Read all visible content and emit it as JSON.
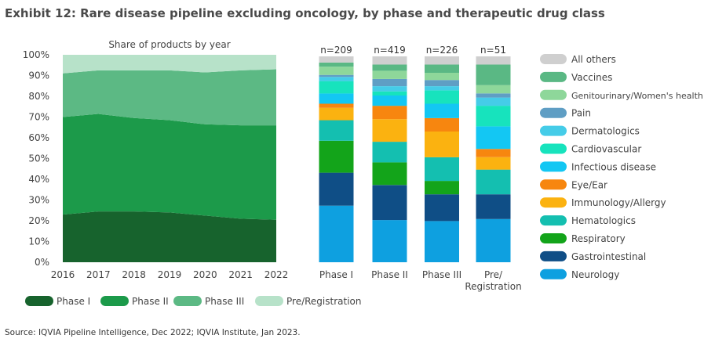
{
  "title": "Exhibit 12: Rare disease pipeline excluding oncology, by phase and therapeutic drug class",
  "source": "Source: IQVIA Pipeline Intelligence, Dec 2022; IQVIA Institute, Jan 2023.",
  "colors": {
    "phase_i": "#17632d",
    "phase_ii": "#1c9a4a",
    "phase_iii": "#5cb984",
    "pre_registration": "#b7e2c9",
    "all_others": "#cfcfcf",
    "vaccines": "#5ab884",
    "genitourinary": "#8ed79a",
    "pain": "#5f9ec4",
    "dermatologics": "#45cce8",
    "cardiovascular": "#17e3bd",
    "infectious": "#13c7f3",
    "eye_ear": "#f7860f",
    "immunology": "#fbb210",
    "hematologics": "#14bfb0",
    "respiratory": "#13a41a",
    "gastrointestinal": "#0f4e86",
    "neurology": "#0ea0e0"
  },
  "chart_data": [
    {
      "type": "area",
      "subtitle": "Share of products by year",
      "x": [
        "2016",
        "2017",
        "2018",
        "2019",
        "2020",
        "2021",
        "2022"
      ],
      "ylim": [
        0,
        100
      ],
      "yticks": [
        "0%",
        "10%",
        "20%",
        "30%",
        "40%",
        "50%",
        "60%",
        "70%",
        "80%",
        "90%",
        "100%"
      ],
      "stacked": true,
      "series": [
        {
          "name": "Phase I",
          "color_key": "phase_i",
          "values": [
            23,
            24.5,
            24.5,
            24,
            22.5,
            21,
            20.5
          ]
        },
        {
          "name": "Phase II",
          "color_key": "phase_ii",
          "values": [
            47,
            47,
            45,
            44.5,
            44,
            45,
            45.5
          ]
        },
        {
          "name": "Phase III",
          "color_key": "phase_iii",
          "values": [
            21,
            21,
            23,
            24,
            25,
            26.5,
            27
          ]
        },
        {
          "name": "Pre/Registration",
          "color_key": "pre_registration",
          "values": [
            9,
            7.5,
            7.5,
            7.5,
            8.5,
            7.5,
            7
          ]
        }
      ],
      "legend": "bottom"
    },
    {
      "type": "bar",
      "stacked": true,
      "categories": [
        "Phase I",
        "Phase II",
        "Phase III",
        "Pre/ Registration"
      ],
      "category_lines": [
        [
          "Phase I"
        ],
        [
          "Phase II"
        ],
        [
          "Phase III"
        ],
        [
          "Pre/",
          "Registration"
        ]
      ],
      "counts": [
        "n=209",
        "n=419",
        "n=226",
        "n=51"
      ],
      "ylim": [
        0,
        100
      ],
      "legend": "right",
      "series": [
        {
          "name": "Neurology",
          "color_key": "neurology",
          "values": [
            27.5,
            20.5,
            20,
            21
          ]
        },
        {
          "name": "Gastrointestinal",
          "color_key": "gastrointestinal",
          "values": [
            16,
            17,
            13,
            12
          ]
        },
        {
          "name": "Respiratory",
          "color_key": "respiratory",
          "values": [
            15.5,
            11,
            6.5,
            0
          ]
        },
        {
          "name": "Hematologics",
          "color_key": "hematologics",
          "values": [
            10,
            10,
            11.5,
            12
          ]
        },
        {
          "name": "Immunology/Allergy",
          "color_key": "immunology",
          "values": [
            6,
            11,
            12.5,
            6
          ]
        },
        {
          "name": "Eye/Ear",
          "color_key": "eye_ear",
          "values": [
            2,
            6.5,
            6.5,
            4
          ]
        },
        {
          "name": "Infectious disease",
          "color_key": "infectious",
          "values": [
            5,
            5,
            7,
            11
          ]
        },
        {
          "name": "Cardiovascular",
          "color_key": "cardiovascular",
          "values": [
            6,
            2,
            6.5,
            10
          ]
        },
        {
          "name": "Dermatologics",
          "color_key": "dermatologics",
          "values": [
            2,
            2.5,
            2,
            4
          ]
        },
        {
          "name": "Pain",
          "color_key": "pain",
          "values": [
            1,
            3.5,
            3,
            2
          ]
        },
        {
          "name": "Genitourinary/Women's health",
          "color_key": "genitourinary",
          "values": [
            4,
            4,
            3.5,
            4
          ]
        },
        {
          "name": "Vaccines",
          "color_key": "vaccines",
          "values": [
            2,
            3,
            4,
            10
          ]
        },
        {
          "name": "All others",
          "color_key": "all_others",
          "values": [
            3,
            4,
            4,
            4
          ]
        }
      ]
    }
  ]
}
